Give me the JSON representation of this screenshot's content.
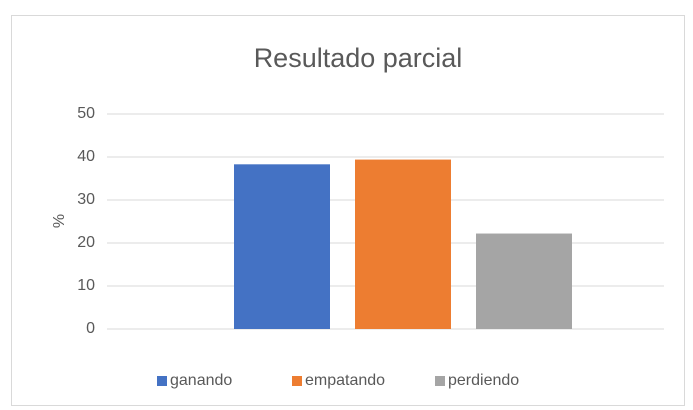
{
  "chart_data": {
    "type": "bar",
    "title": "Resultado parcial",
    "y_label": "%",
    "categories": [
      null
    ],
    "series": [
      {
        "name": "ganando",
        "color": "#4472c4",
        "values": [
          38.3
        ]
      },
      {
        "name": "empatando",
        "color": "#ed7d31",
        "values": [
          39.4
        ]
      },
      {
        "name": "perdiendo",
        "color": "#a5a5a5",
        "values": [
          22.2
        ]
      }
    ],
    "ylim": [
      0,
      50
    ],
    "yticks": [
      0,
      10,
      20,
      30,
      40,
      50
    ],
    "grid": true,
    "legend": "bottom"
  }
}
